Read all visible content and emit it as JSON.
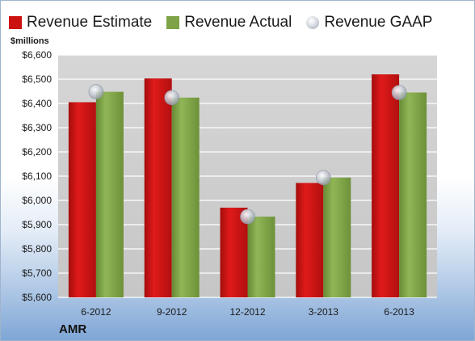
{
  "chart_data": {
    "type": "bar",
    "title": "",
    "ylabel": "$millions",
    "xlabel": "",
    "categories": [
      "6-2012",
      "9-2012",
      "12-2012",
      "3-2013",
      "6-2013"
    ],
    "series": [
      {
        "name": "Revenue Estimate",
        "kind": "bar",
        "color": "#cc1111",
        "values": [
          6405,
          6503,
          5970,
          6072,
          6520
        ]
      },
      {
        "name": "Revenue Actual",
        "kind": "bar",
        "color": "#7ea346",
        "values": [
          6448,
          6424,
          5933,
          6094,
          6445
        ]
      },
      {
        "name": "Revenue GAAP",
        "kind": "marker",
        "color": "#b8bec8",
        "values": [
          6448,
          6424,
          5933,
          6094,
          6445
        ]
      }
    ],
    "ylim": [
      5600,
      6600
    ],
    "yticks": [
      "$5,600",
      "$5,700",
      "$5,800",
      "$5,900",
      "$6,000",
      "$6,100",
      "$6,200",
      "$6,300",
      "$6,400",
      "$6,500",
      "$6,600"
    ],
    "ytick_values": [
      5600,
      5700,
      5800,
      5900,
      6000,
      6100,
      6200,
      6300,
      6400,
      6500,
      6600
    ],
    "grid": true,
    "legend": "top"
  },
  "legend": {
    "estimate": "Revenue Estimate",
    "actual": "Revenue Actual",
    "gaap": "Revenue GAAP"
  },
  "unit_label": "$millions",
  "company": "AMR"
}
